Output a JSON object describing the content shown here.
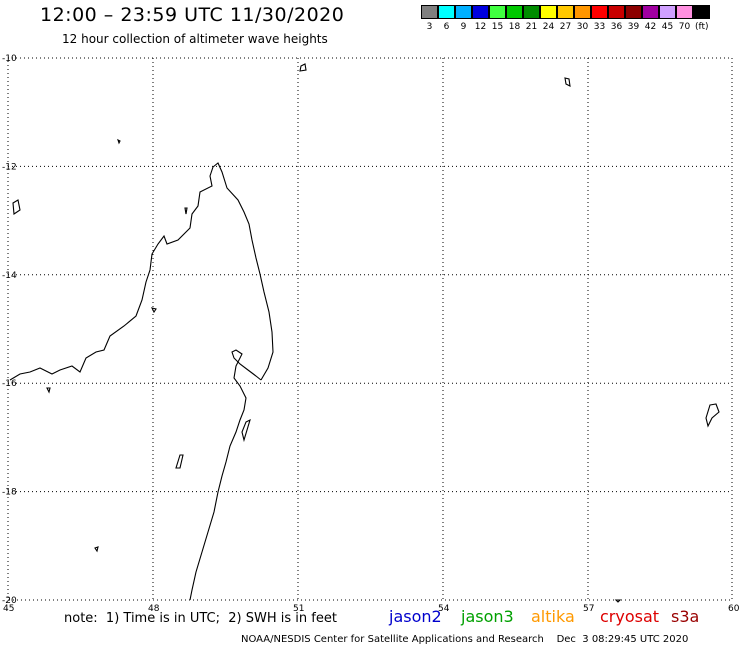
{
  "header": {
    "title": "12:00 – 23:59 UTC 11/30/2020",
    "subtitle": "12 hour collection of altimeter wave heights"
  },
  "scale": {
    "unit": "(ft)",
    "bins": [
      {
        "label": "3",
        "color": "#808080"
      },
      {
        "label": "6",
        "color": "#00ffff"
      },
      {
        "label": "9",
        "color": "#00b0ff"
      },
      {
        "label": "12",
        "color": "#0000e0"
      },
      {
        "label": "15",
        "color": "#40ff40"
      },
      {
        "label": "18",
        "color": "#00c800"
      },
      {
        "label": "21",
        "color": "#008c00"
      },
      {
        "label": "24",
        "color": "#ffff00"
      },
      {
        "label": "27",
        "color": "#ffc800"
      },
      {
        "label": "30",
        "color": "#ff9600"
      },
      {
        "label": "33",
        "color": "#ff0000"
      },
      {
        "label": "36",
        "color": "#c80000"
      },
      {
        "label": "39",
        "color": "#8c0000"
      },
      {
        "label": "42",
        "color": "#a000a0"
      },
      {
        "label": "45",
        "color": "#d0a0ff"
      },
      {
        "label": "70",
        "color": "#ff90e0"
      },
      {
        "label": "",
        "color": "#000000"
      }
    ]
  },
  "axes": {
    "lat_labels": [
      "-10",
      "-12",
      "-14",
      "-16",
      "-18",
      "-20"
    ],
    "lon_labels": [
      "45",
      "48",
      "51",
      "54",
      "57",
      "60"
    ]
  },
  "footer": {
    "note": "note:  1) Time is in UTC;  2) SWH is in feet",
    "satellites": [
      {
        "name": "jason2",
        "color": "#0000cc"
      },
      {
        "name": "jason3",
        "color": "#00a000"
      },
      {
        "name": "altika",
        "color": "#ff9900"
      },
      {
        "name": "cryosat",
        "color": "#dd0000"
      },
      {
        "name": "s3a",
        "color": "#990000"
      }
    ],
    "credit": "NOAA/NESDIS Center for Satellite Applications and Research    Dec  3 08:29:45 UTC 2020"
  }
}
